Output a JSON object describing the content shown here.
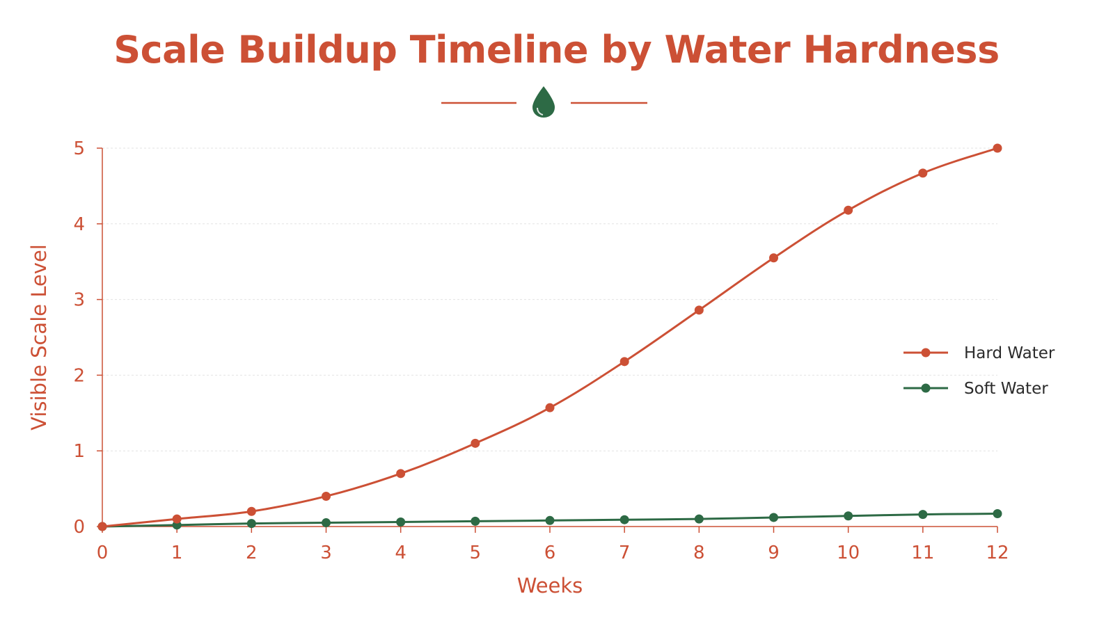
{
  "chart_data": {
    "type": "line",
    "title": "Scale Buildup Timeline by Water Hardness",
    "xlabel": "Weeks",
    "ylabel": "Visible Scale Level",
    "x": [
      0,
      1,
      2,
      3,
      4,
      5,
      6,
      7,
      8,
      9,
      10,
      11,
      12
    ],
    "xlim": [
      0,
      12
    ],
    "ylim": [
      0,
      5
    ],
    "x_ticks": [
      "0",
      "1",
      "2",
      "3",
      "4",
      "5",
      "6",
      "7",
      "8",
      "9",
      "10",
      "11",
      "12"
    ],
    "y_ticks": [
      "0",
      "1",
      "2",
      "3",
      "4",
      "5"
    ],
    "grid": true,
    "legend_position": "right",
    "series": [
      {
        "name": "Hard Water",
        "color": "#cc5035",
        "values": [
          0,
          0.1,
          0.2,
          0.4,
          0.7,
          1.1,
          1.57,
          2.18,
          2.86,
          3.55,
          4.18,
          4.67,
          5.0
        ]
      },
      {
        "name": "Soft Water",
        "color": "#2d6a45",
        "values": [
          0,
          0.02,
          0.04,
          0.05,
          0.06,
          0.07,
          0.08,
          0.09,
          0.1,
          0.12,
          0.14,
          0.16,
          0.17
        ]
      }
    ],
    "decoration": {
      "icon": "water-drop-icon",
      "line_color": "#cc5035",
      "icon_color": "#2d6a45"
    }
  }
}
